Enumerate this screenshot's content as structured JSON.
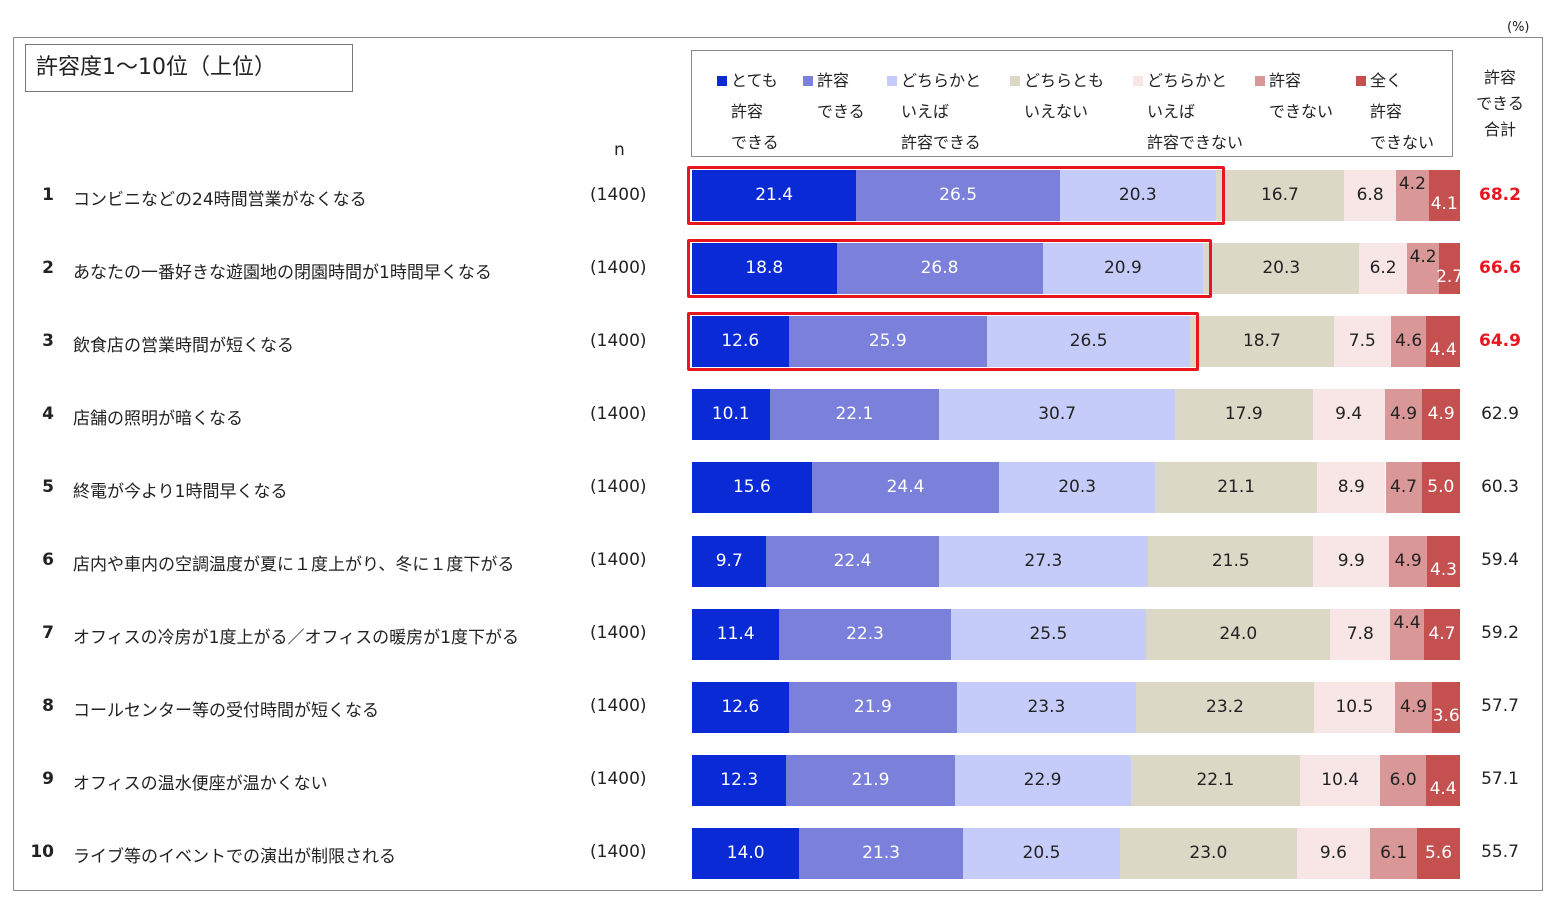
{
  "unit_label": "(%)",
  "chart_data": {
    "type": "bar",
    "orientation": "horizontal-stacked-100",
    "title": "許容度1～10位（上位）",
    "n_header": "n",
    "total_header": "許容\nできる\n合計",
    "series": [
      {
        "name": "とても\n許容\nできる",
        "color": "#0a2ad6",
        "text_color": "#ffffff",
        "values": [
          21.4,
          18.8,
          12.6,
          10.1,
          15.6,
          9.7,
          11.4,
          12.6,
          12.3,
          14.0
        ]
      },
      {
        "name": "許容\nできる",
        "color": "#7b80db",
        "text_color": "#ffffff",
        "values": [
          26.5,
          26.8,
          25.9,
          22.1,
          24.4,
          22.4,
          22.3,
          21.9,
          21.9,
          21.3
        ]
      },
      {
        "name": "どちらかと\nいえば\n許容できる",
        "color": "#c6ccfa",
        "text_color": "#222222",
        "values": [
          20.3,
          20.9,
          26.5,
          30.7,
          20.3,
          27.3,
          25.5,
          23.3,
          22.9,
          20.5
        ]
      },
      {
        "name": "どちらとも\nいえない",
        "color": "#dcd8c6",
        "text_color": "#222222",
        "values": [
          16.7,
          20.3,
          18.7,
          17.9,
          21.1,
          21.5,
          24.0,
          23.2,
          22.1,
          23.0
        ]
      },
      {
        "name": "どちらかと\nいえば\n許容できない",
        "color": "#f8e6e6",
        "text_color": "#222222",
        "values": [
          6.8,
          6.2,
          7.5,
          9.4,
          8.9,
          9.9,
          7.8,
          10.5,
          10.4,
          9.6
        ]
      },
      {
        "name": "許容\nできない",
        "color": "#da9797",
        "text_color": "#222222",
        "values": [
          4.2,
          4.2,
          4.6,
          4.9,
          4.7,
          4.9,
          4.4,
          4.9,
          6.0,
          6.1
        ]
      },
      {
        "name": "全く\n許容\nできない",
        "color": "#c55050",
        "text_color": "#ffffff",
        "values": [
          4.1,
          2.7,
          4.4,
          4.9,
          5.0,
          4.3,
          4.7,
          3.6,
          4.4,
          5.6
        ]
      }
    ],
    "rows": [
      {
        "rank": "1",
        "label": "コンビニなどの24時間営業がなくなる",
        "n": "(1400)",
        "total": "68.2",
        "highlight": true
      },
      {
        "rank": "2",
        "label": "あなたの一番好きな遊園地の閉園時間が1時間早くなる",
        "n": "(1400)",
        "total": "66.6",
        "highlight": true
      },
      {
        "rank": "3",
        "label": "飲食店の営業時間が短くなる",
        "n": "(1400)",
        "total": "64.9",
        "highlight": true
      },
      {
        "rank": "4",
        "label": "店舗の照明が暗くなる",
        "n": "(1400)",
        "total": "62.9",
        "highlight": false
      },
      {
        "rank": "5",
        "label": "終電が今より1時間早くなる",
        "n": "(1400)",
        "total": "60.3",
        "highlight": false
      },
      {
        "rank": "6",
        "label": "店内や車内の空調温度が夏に１度上がり、冬に１度下がる",
        "n": "(1400)",
        "total": "59.4",
        "highlight": false
      },
      {
        "rank": "7",
        "label": "オフィスの冷房が1度上がる／オフィスの暖房が1度下がる",
        "n": "(1400)",
        "total": "59.2",
        "highlight": false
      },
      {
        "rank": "8",
        "label": "コールセンター等の受付時間が短くなる",
        "n": "(1400)",
        "total": "57.7",
        "highlight": false
      },
      {
        "rank": "9",
        "label": "オフィスの温水便座が温かくない",
        "n": "(1400)",
        "total": "57.1",
        "highlight": false
      },
      {
        "rank": "10",
        "label": "ライブ等のイベントでの演出が制限される",
        "n": "(1400)",
        "total": "55.7",
        "highlight": false
      }
    ]
  }
}
